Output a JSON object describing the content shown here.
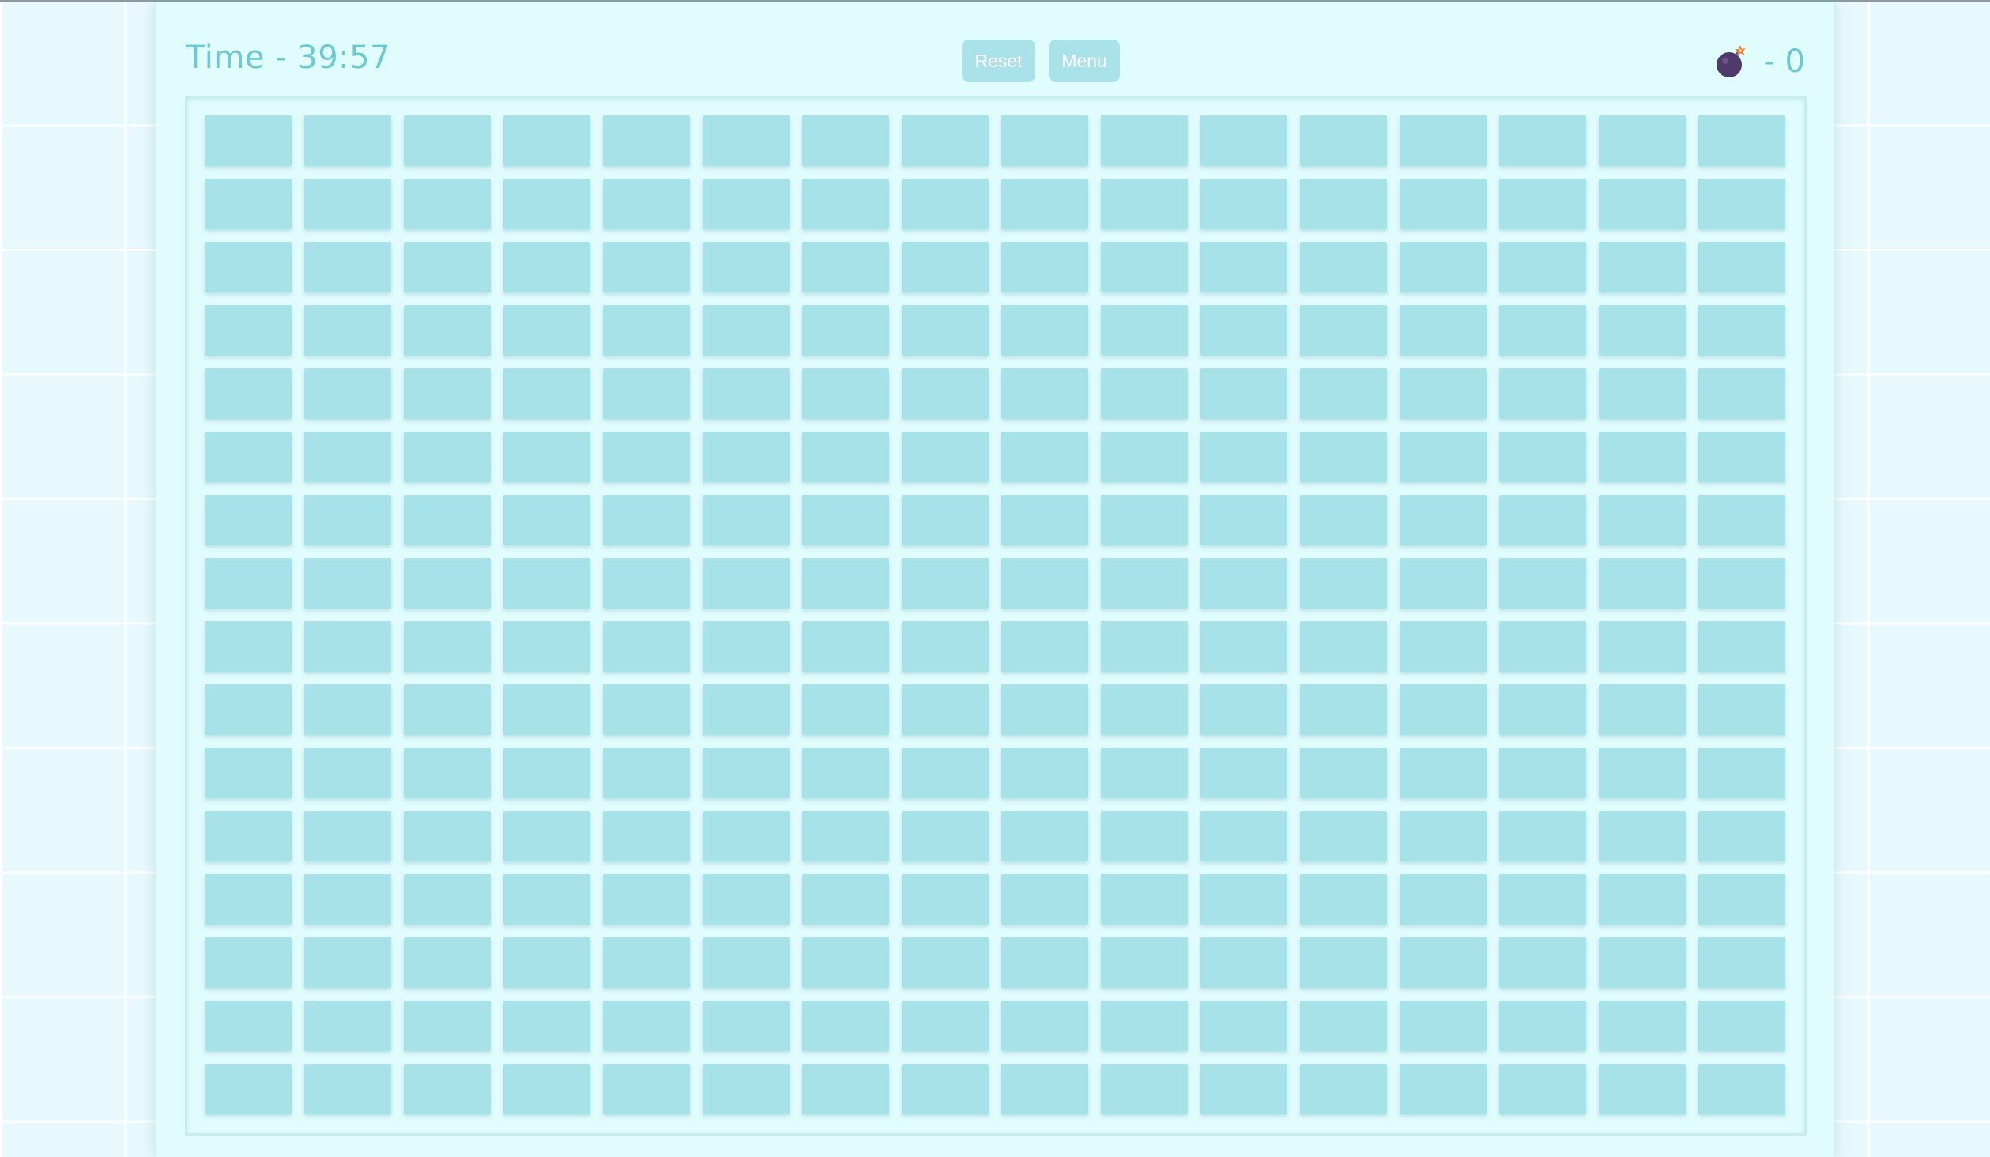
{
  "header": {
    "timer_text": "Time - 39:57",
    "reset_label": "Reset",
    "menu_label": "Menu",
    "bomb_counter_text": "- 0",
    "bomb_icon": "bomb-icon"
  },
  "board": {
    "rows": 16,
    "columns": 16,
    "cell_state": "unrevealed"
  },
  "colors": {
    "accent_text": "#6cc9d0",
    "button_bg": "#a9e3e9",
    "cell_bg": "#a7e2e8",
    "panel_bg": "#e0fcfd",
    "bomb_body": "#4e3a6b",
    "bomb_spark": "#f07a3a"
  }
}
